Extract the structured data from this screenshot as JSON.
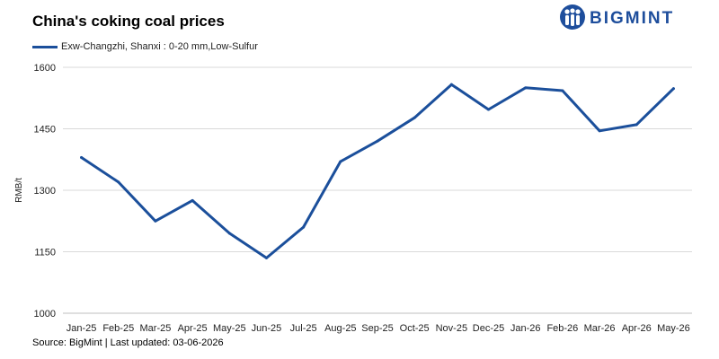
{
  "header": {
    "title": "China's coking coal prices",
    "logo_text": "BIGMINT",
    "logo_icon": "bigmint-people-icon"
  },
  "footer": {
    "source": "Source: BigMint | Last updated: 03-06-2026"
  },
  "chart_data": {
    "type": "line",
    "title": "China's coking coal prices",
    "xlabel": "",
    "ylabel": "RMB/t",
    "ylim": [
      1000,
      1600
    ],
    "yticks": [
      1000,
      1150,
      1300,
      1450,
      1600
    ],
    "grid": "horizontal",
    "legend_position": "top-left",
    "categories": [
      "Jan-25",
      "Feb-25",
      "Mar-25",
      "Apr-25",
      "May-25",
      "Jun-25",
      "Jul-25",
      "Aug-25",
      "Sep-25",
      "Oct-25",
      "Nov-25",
      "Dec-25",
      "Jan-26",
      "Feb-26",
      "Mar-26",
      "Apr-26",
      "May-26"
    ],
    "series": [
      {
        "name": "Exw-Changzhi, Shanxi : 0-20 mm,Low-Sulfur",
        "color": "#1b4f9b",
        "values": [
          1380,
          1320,
          1225,
          1275,
          1195,
          1135,
          1210,
          1370,
          1420,
          1477,
          1558,
          1497,
          1550,
          1543,
          1445,
          1460,
          1548
        ]
      }
    ]
  }
}
